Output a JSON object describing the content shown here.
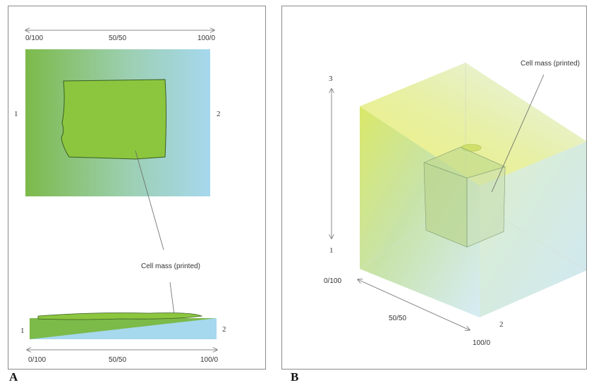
{
  "panel_a": {
    "top_scale": {
      "left": "0/100",
      "middle": "50/50",
      "right": "100/0"
    },
    "side_left": "1",
    "side_right": "2",
    "callout": "Cell mass (printed)",
    "bottom_left": "1",
    "bottom_right": "2",
    "bottom_scale": {
      "left": "0/100",
      "middle": "50/50",
      "right": "100/0"
    },
    "letter": "A"
  },
  "panel_b": {
    "callout": "Cell mass (printed)",
    "axis3_top": "3",
    "axis3_bottom": "1",
    "diag_start": "0/100",
    "diag_mid": "50/50",
    "diag_end": "100/0",
    "axis2_label": "2",
    "letter": "B"
  },
  "colors": {
    "green": "#7dba4b",
    "blue": "#a7d9ef",
    "yellow": "#f3ef6c",
    "cell_green": "#8cc63f"
  }
}
